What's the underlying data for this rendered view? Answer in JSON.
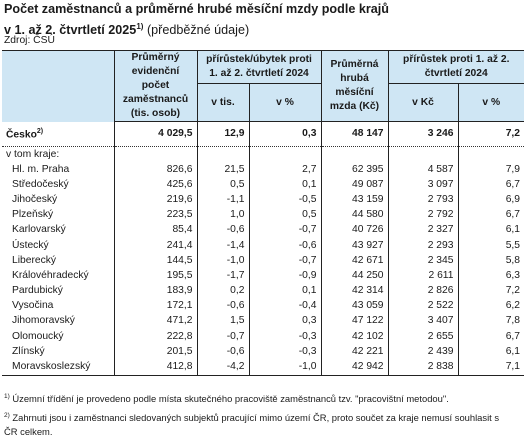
{
  "title": {
    "line1": "Počet zaměstnanců a průměrné hrubé měsíční mzdy podle krajů",
    "line2": "v 1. až 2. čtvrtletí 2025",
    "line2_sup": "1)",
    "line2_note": " (předběžné údaje)"
  },
  "source": "Zdroj: ČSÚ",
  "table": {
    "headers": {
      "employees": "Průměrný evidenční počet zaměstnanců (tis. osob)",
      "growth_employees": "přírůstek/úbytek proti 1. až 2. čtvrtletí 2024",
      "growth_employees_abs": "v tis.",
      "growth_employees_pct": "v %",
      "wage": "Průměrná hrubá měsíční mzda (Kč)",
      "growth_wage": "přírůstek proti 1. až 2. čtvrtletí 2024",
      "growth_wage_abs": "v Kč",
      "growth_wage_pct": "v %"
    },
    "total": {
      "label": "Česko",
      "sup": "2)",
      "values": [
        "4 029,5",
        "12,9",
        "0,3",
        "48 147",
        "3 246",
        "7,2"
      ]
    },
    "subheading": "v tom kraje:",
    "rows": [
      {
        "label": "Hl. m. Praha",
        "values": [
          "826,6",
          "21,5",
          "2,7",
          "62 395",
          "4 587",
          "7,9"
        ]
      },
      {
        "label": "Středočeský",
        "values": [
          "425,6",
          "0,5",
          "0,1",
          "49 087",
          "3 097",
          "6,7"
        ]
      },
      {
        "label": "Jihočeský",
        "values": [
          "219,6",
          "-1,1",
          "-0,5",
          "43 159",
          "2 793",
          "6,9"
        ]
      },
      {
        "label": "Plzeňský",
        "values": [
          "223,5",
          "1,0",
          "0,5",
          "44 580",
          "2 792",
          "6,7"
        ]
      },
      {
        "label": "Karlovarský",
        "values": [
          "85,4",
          "-0,6",
          "-0,7",
          "40 726",
          "2 327",
          "6,1"
        ]
      },
      {
        "label": "Ústecký",
        "values": [
          "241,4",
          "-1,4",
          "-0,6",
          "43 927",
          "2 293",
          "5,5"
        ]
      },
      {
        "label": "Liberecký",
        "values": [
          "144,5",
          "-1,0",
          "-0,7",
          "42 671",
          "2 345",
          "5,8"
        ]
      },
      {
        "label": "Královéhradecký",
        "values": [
          "195,5",
          "-1,7",
          "-0,9",
          "44 250",
          "2 611",
          "6,3"
        ]
      },
      {
        "label": "Pardubický",
        "values": [
          "183,9",
          "0,2",
          "0,1",
          "42 314",
          "2 826",
          "7,2"
        ]
      },
      {
        "label": "Vysočina",
        "values": [
          "172,1",
          "-0,6",
          "-0,4",
          "43 059",
          "2 522",
          "6,2"
        ]
      },
      {
        "label": "Jihomoravský",
        "values": [
          "471,2",
          "1,5",
          "0,3",
          "47 122",
          "3 407",
          "7,8"
        ]
      },
      {
        "label": "Olomoucký",
        "values": [
          "222,8",
          "-0,7",
          "-0,3",
          "42 102",
          "2 655",
          "6,7"
        ]
      },
      {
        "label": "Zlínský",
        "values": [
          "201,5",
          "-0,6",
          "-0,3",
          "42 221",
          "2 439",
          "6,1"
        ]
      },
      {
        "label": "Moravskoslezský",
        "values": [
          "412,8",
          "-4,2",
          "-1,0",
          "42 942",
          "2 838",
          "7,1"
        ]
      }
    ]
  },
  "footnotes": [
    {
      "mark": "1)",
      "text": " Územní třídění je provedeno podle místa skutečného pracoviště zaměstnanců tzv. \"pracovištní metodou\"."
    },
    {
      "mark": "2)",
      "text": " Zahrnuti jsou i zaměstnanci sledovaných subjektů pracující mimo území ČR, proto součet za kraje nemusí souhlasit s ČR celkem."
    }
  ]
}
